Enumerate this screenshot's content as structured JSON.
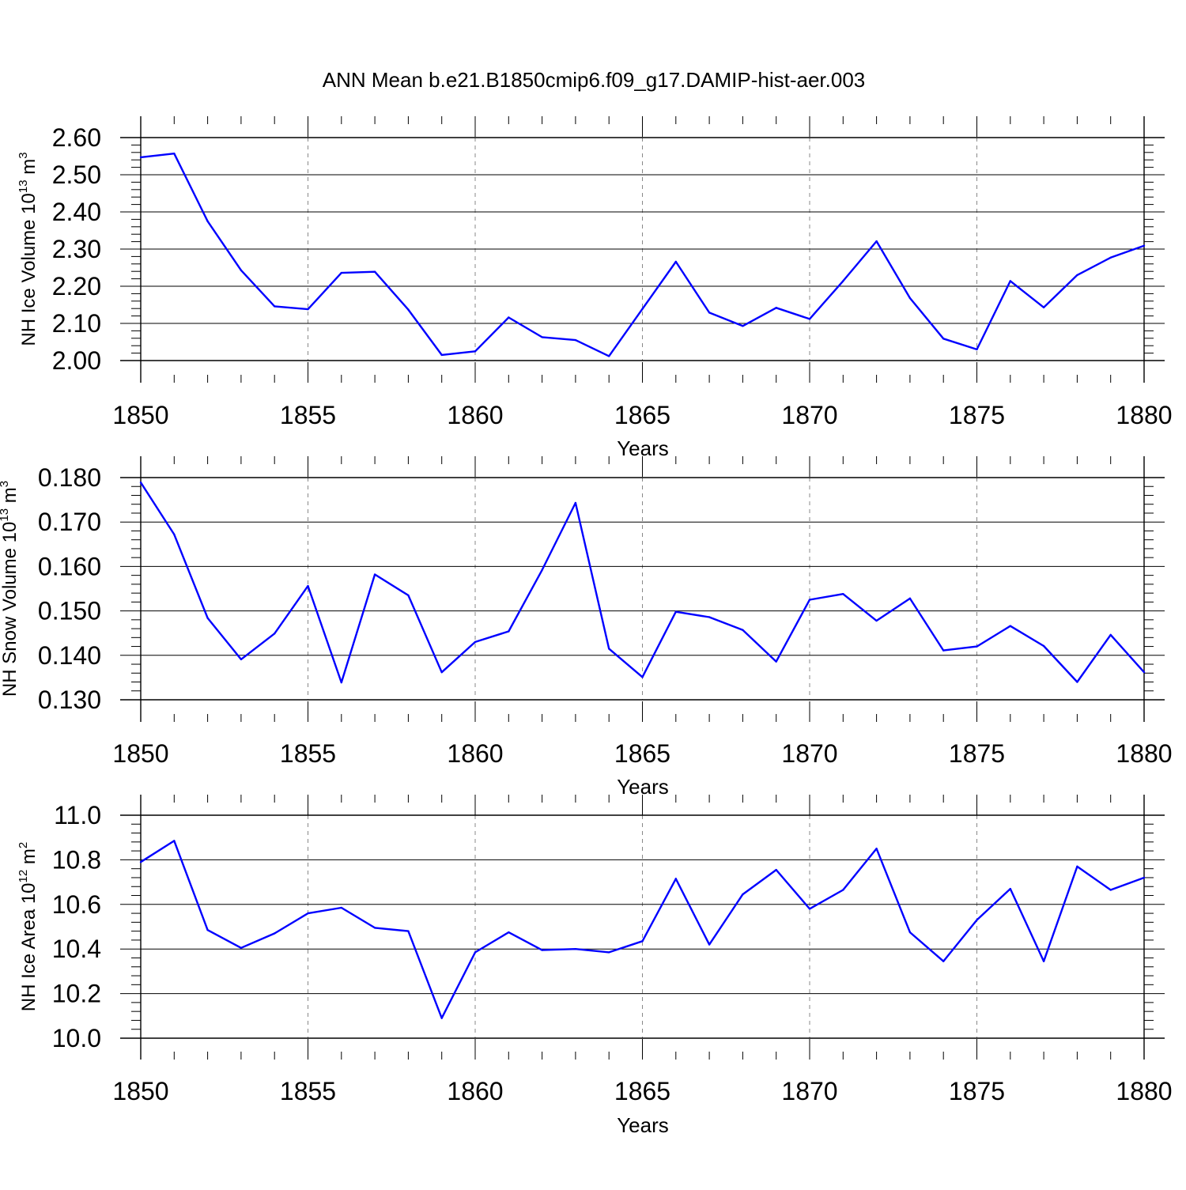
{
  "title": "ANN Mean b.e21.B1850cmip6.f09_g17.DAMIP-hist-aer.003",
  "line_color": "#0000ff",
  "chart_data": [
    {
      "type": "line",
      "xlabel": "Years",
      "ylabel": {
        "pre": "NH Ice Volume 10",
        "sup": "13",
        "mid": " m",
        "sup2": "3"
      },
      "xlim": [
        1850,
        1880
      ],
      "ylim": [
        2.0,
        2.6
      ],
      "x_ticks": [
        "1850",
        "1855",
        "1860",
        "1865",
        "1870",
        "1875",
        "1880"
      ],
      "y_ticks": [
        "2.00",
        "2.10",
        "2.20",
        "2.30",
        "2.40",
        "2.50",
        "2.60"
      ],
      "x": [
        1850,
        1851,
        1852,
        1853,
        1854,
        1855,
        1856,
        1857,
        1858,
        1859,
        1860,
        1861,
        1862,
        1863,
        1864,
        1865,
        1866,
        1867,
        1868,
        1869,
        1870,
        1871,
        1872,
        1873,
        1874,
        1875,
        1876,
        1877,
        1878,
        1879,
        1880
      ],
      "values": [
        2.547,
        2.557,
        2.375,
        2.243,
        2.146,
        2.138,
        2.236,
        2.239,
        2.137,
        2.015,
        2.025,
        2.116,
        2.063,
        2.055,
        2.012,
        2.139,
        2.266,
        2.129,
        2.093,
        2.142,
        2.112,
        2.214,
        2.321,
        2.168,
        2.059,
        2.03,
        2.214,
        2.143,
        2.23,
        2.277,
        2.309
      ],
      "grid": "dashed vertical at labeled years"
    },
    {
      "type": "line",
      "xlabel": "Years",
      "ylabel": {
        "pre": "NH Snow Volume 10",
        "sup": "13",
        "mid": " m",
        "sup2": "3"
      },
      "xlim": [
        1850,
        1880
      ],
      "ylim": [
        0.13,
        0.18
      ],
      "x_ticks": [
        "1850",
        "1855",
        "1860",
        "1865",
        "1870",
        "1875",
        "1880"
      ],
      "y_ticks": [
        "0.130",
        "0.140",
        "0.150",
        "0.160",
        "0.170",
        "0.180"
      ],
      "x": [
        1850,
        1851,
        1852,
        1853,
        1854,
        1855,
        1856,
        1857,
        1858,
        1859,
        1860,
        1861,
        1862,
        1863,
        1864,
        1865,
        1866,
        1867,
        1868,
        1869,
        1870,
        1871,
        1872,
        1873,
        1874,
        1875,
        1876,
        1877,
        1878,
        1879,
        1880
      ],
      "values": [
        0.1789,
        0.1672,
        0.1484,
        0.1391,
        0.1449,
        0.1556,
        0.1339,
        0.1582,
        0.1535,
        0.1362,
        0.143,
        0.1454,
        0.1592,
        0.1743,
        0.1415,
        0.1351,
        0.1498,
        0.1486,
        0.1457,
        0.1386,
        0.1525,
        0.1538,
        0.1478,
        0.1528,
        0.1411,
        0.142,
        0.1466,
        0.1421,
        0.134,
        0.1446,
        0.1362
      ],
      "grid": "dashed vertical at labeled years"
    },
    {
      "type": "line",
      "xlabel": "Years",
      "ylabel": {
        "pre": "NH Ice Area 10",
        "sup": "12",
        "mid": " m",
        "sup2": "2"
      },
      "xlim": [
        1850,
        1880
      ],
      "ylim": [
        10.0,
        11.0
      ],
      "x_ticks": [
        "1850",
        "1855",
        "1860",
        "1865",
        "1870",
        "1875",
        "1880"
      ],
      "y_ticks": [
        "10.0",
        "10.2",
        "10.4",
        "10.6",
        "10.8",
        "11.0"
      ],
      "x": [
        1850,
        1851,
        1852,
        1853,
        1854,
        1855,
        1856,
        1857,
        1858,
        1859,
        1860,
        1861,
        1862,
        1863,
        1864,
        1865,
        1866,
        1867,
        1868,
        1869,
        1870,
        1871,
        1872,
        1873,
        1874,
        1875,
        1876,
        1877,
        1878,
        1879,
        1880
      ],
      "values": [
        10.79,
        10.885,
        10.485,
        10.405,
        10.47,
        10.56,
        10.585,
        10.495,
        10.48,
        10.09,
        10.385,
        10.475,
        10.395,
        10.4,
        10.385,
        10.435,
        10.715,
        10.42,
        10.645,
        10.755,
        10.58,
        10.665,
        10.85,
        10.475,
        10.345,
        10.53,
        10.67,
        10.345,
        10.77,
        10.665,
        10.72
      ],
      "grid": "dashed vertical at labeled years"
    }
  ]
}
